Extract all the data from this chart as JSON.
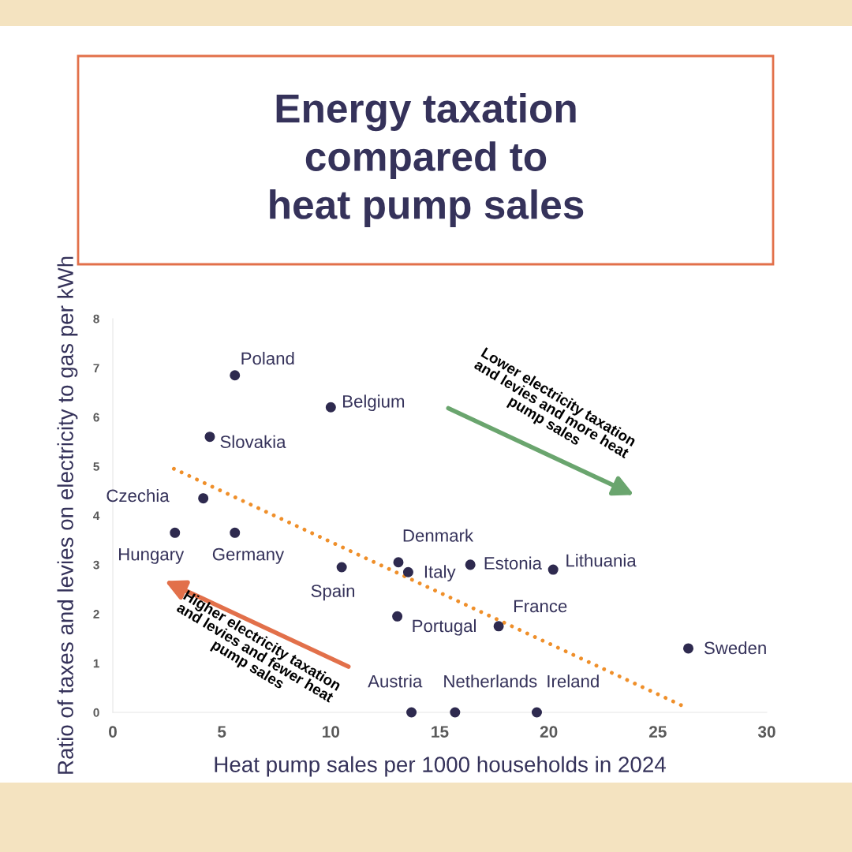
{
  "chart_data": {
    "type": "scatter",
    "title": "Energy taxation\ncompared to\nheat pump sales",
    "xlabel": "Heat pump sales per 1000 households in 2024",
    "ylabel": "Ratio of taxes and levies on electricity to gas per kWh",
    "xlim": [
      0,
      30
    ],
    "xticks": [
      0,
      5,
      10,
      15,
      20,
      25,
      30
    ],
    "ylim": [
      0,
      8
    ],
    "yticks": [
      0,
      1,
      2,
      3,
      4,
      5,
      6,
      7,
      8
    ],
    "grid": false,
    "legend": false,
    "marker": "circle",
    "series": [
      {
        "type": "scatter",
        "color": "#2e2a4f",
        "x": [
          5.6,
          10.0,
          4.45,
          4.15,
          2.85,
          5.6,
          10.5,
          13.1,
          13.55,
          16.4,
          20.2,
          13.05,
          17.7,
          26.4,
          13.7,
          15.7,
          19.45
        ],
        "values": [
          6.85,
          6.2,
          5.6,
          4.35,
          3.65,
          3.65,
          2.95,
          3.05,
          2.85,
          3.0,
          2.9,
          1.95,
          1.75,
          1.3,
          0,
          0,
          0
        ]
      },
      {
        "type": "line",
        "color": "#ef8f2a",
        "line_style": "dotted",
        "marker": "none",
        "x": [
          2.8,
          26.3
        ],
        "values": [
          4.95,
          0.1
        ]
      }
    ],
    "annotations": [
      {
        "text": "Poland",
        "x": 5.6,
        "y": 6.85
      },
      {
        "text": "Belgium",
        "x": 10.0,
        "y": 6.2
      },
      {
        "text": "Slovakia",
        "x": 4.45,
        "y": 5.6
      },
      {
        "text": "Czechia",
        "x": 4.15,
        "y": 4.35
      },
      {
        "text": "Hungary",
        "x": 2.85,
        "y": 3.65
      },
      {
        "text": "Germany",
        "x": 5.6,
        "y": 3.65
      },
      {
        "text": "Spain",
        "x": 10.5,
        "y": 2.95
      },
      {
        "text": "Denmark",
        "x": 13.1,
        "y": 3.05
      },
      {
        "text": "Italy",
        "x": 13.55,
        "y": 2.85
      },
      {
        "text": "Estonia",
        "x": 16.4,
        "y": 3.0
      },
      {
        "text": "Lithuania",
        "x": 20.2,
        "y": 2.9
      },
      {
        "text": "Portugal",
        "x": 13.05,
        "y": 1.95
      },
      {
        "text": "France",
        "x": 17.7,
        "y": 1.75
      },
      {
        "text": "Sweden",
        "x": 26.4,
        "y": 1.3
      },
      {
        "text": "Austria",
        "x": 13.7,
        "y": 0
      },
      {
        "text": "Netherlands",
        "x": 15.7,
        "y": 0
      },
      {
        "text": "Ireland",
        "x": 19.45,
        "y": 0
      },
      "Lower electricity taxation\nand levies and more heat\npump sales",
      "Higher electricity taxation\nand levies and fewer heat\npump sales"
    ]
  }
}
